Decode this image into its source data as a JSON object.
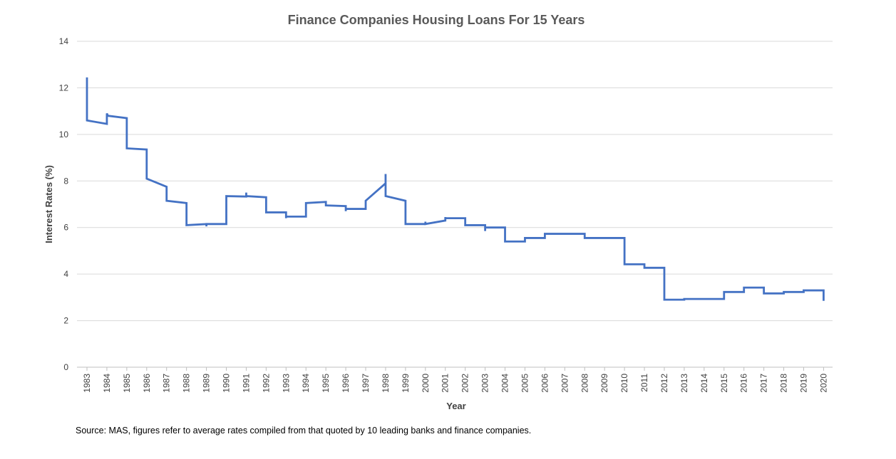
{
  "chart_data": {
    "type": "line",
    "title": "Finance Companies Housing Loans For 15 Years",
    "xlabel": "Year",
    "ylabel": "Interest Rates (%)",
    "ylim": [
      0,
      14
    ],
    "y_ticks": [
      "0",
      "2",
      "4",
      "6",
      "8",
      "10",
      "12",
      "14"
    ],
    "categories": [
      "1983",
      "1984",
      "1985",
      "1986",
      "1987",
      "1988",
      "1989",
      "1990",
      "1991",
      "1992",
      "1993",
      "1994",
      "1995",
      "1996",
      "1997",
      "1998",
      "1999",
      "2000",
      "2001",
      "2002",
      "2003",
      "2004",
      "2005",
      "2006",
      "2007",
      "2008",
      "2009",
      "2010",
      "2011",
      "2012",
      "2013",
      "2014",
      "2015",
      "2016",
      "2017",
      "2018",
      "2019",
      "2020"
    ],
    "grid": true,
    "legend": "none",
    "line_color": "#4472C4",
    "series": [
      {
        "points": [
          [
            1983.0,
            12.45
          ],
          [
            1983.0,
            10.6
          ],
          [
            1984.0,
            10.45
          ],
          [
            1984.0,
            10.9
          ],
          [
            1984.05,
            10.8
          ],
          [
            1985.0,
            10.7
          ],
          [
            1985.0,
            9.4
          ],
          [
            1986.0,
            9.35
          ],
          [
            1986.0,
            8.1
          ],
          [
            1987.0,
            7.75
          ],
          [
            1987.0,
            7.15
          ],
          [
            1988.0,
            7.05
          ],
          [
            1988.0,
            6.1
          ],
          [
            1989.0,
            6.15
          ],
          [
            1989.0,
            6.05
          ],
          [
            1989.0,
            6.15
          ],
          [
            1990.0,
            6.15
          ],
          [
            1990.0,
            7.35
          ],
          [
            1991.0,
            7.33
          ],
          [
            1991.0,
            7.5
          ],
          [
            1991.0,
            7.35
          ],
          [
            1992.0,
            7.3
          ],
          [
            1992.0,
            6.65
          ],
          [
            1993.0,
            6.65
          ],
          [
            1993.0,
            6.4
          ],
          [
            1993.0,
            6.47
          ],
          [
            1994.0,
            6.47
          ],
          [
            1994.0,
            7.05
          ],
          [
            1995.0,
            7.1
          ],
          [
            1995.0,
            6.95
          ],
          [
            1996.0,
            6.92
          ],
          [
            1996.0,
            6.7
          ],
          [
            1996.0,
            6.8
          ],
          [
            1997.0,
            6.8
          ],
          [
            1997.0,
            7.15
          ],
          [
            1998.0,
            7.9
          ],
          [
            1998.0,
            8.3
          ],
          [
            1998.0,
            7.35
          ],
          [
            1999.0,
            7.15
          ],
          [
            1999.0,
            6.15
          ],
          [
            2000.0,
            6.15
          ],
          [
            2000.0,
            6.25
          ],
          [
            2000.0,
            6.15
          ],
          [
            2001.0,
            6.3
          ],
          [
            2001.0,
            6.45
          ],
          [
            2001.0,
            6.4
          ],
          [
            2002.0,
            6.4
          ],
          [
            2002.0,
            6.1
          ],
          [
            2003.0,
            6.1
          ],
          [
            2003.0,
            5.85
          ],
          [
            2003.0,
            6.0
          ],
          [
            2004.0,
            6.0
          ],
          [
            2004.0,
            5.4
          ],
          [
            2005.0,
            5.4
          ],
          [
            2005.0,
            5.55
          ],
          [
            2006.0,
            5.55
          ],
          [
            2006.0,
            5.73
          ],
          [
            2008.0,
            5.73
          ],
          [
            2008.0,
            5.55
          ],
          [
            2010.0,
            5.55
          ],
          [
            2010.0,
            4.42
          ],
          [
            2011.0,
            4.42
          ],
          [
            2011.0,
            4.27
          ],
          [
            2012.0,
            4.27
          ],
          [
            2012.0,
            2.9
          ],
          [
            2013.0,
            2.9
          ],
          [
            2013.0,
            2.93
          ],
          [
            2015.0,
            2.93
          ],
          [
            2015.0,
            3.23
          ],
          [
            2016.0,
            3.23
          ],
          [
            2016.0,
            3.42
          ],
          [
            2017.0,
            3.42
          ],
          [
            2017.0,
            3.17
          ],
          [
            2018.0,
            3.17
          ],
          [
            2018.0,
            3.23
          ],
          [
            2019.0,
            3.23
          ],
          [
            2019.0,
            3.3
          ],
          [
            2020.0,
            3.3
          ],
          [
            2020.0,
            2.85
          ]
        ]
      }
    ]
  },
  "footer": {
    "source": "Source: MAS, figures refer to average rates compiled from that quoted by 10 leading banks and finance companies."
  }
}
